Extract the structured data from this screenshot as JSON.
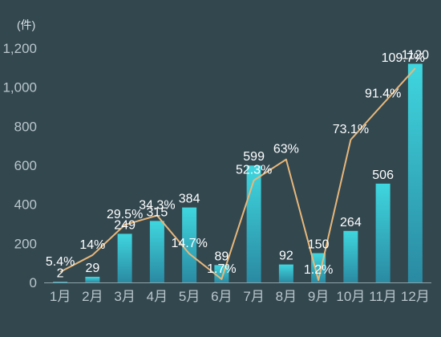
{
  "chart_data": {
    "type": "bar",
    "unit_label": "(件)",
    "categories": [
      "1月",
      "2月",
      "3月",
      "4月",
      "5月",
      "6月",
      "7月",
      "8月",
      "9月",
      "10月",
      "11月",
      "12月"
    ],
    "ylim": [
      0,
      1200
    ],
    "yticks": [
      "0",
      "200",
      "400",
      "600",
      "800",
      "1,000",
      "1,200"
    ],
    "grid": false,
    "series": [
      {
        "type": "bar",
        "values": [
          2,
          29,
          249,
          315,
          384,
          89,
          599,
          92,
          150,
          264,
          506,
          1120
        ],
        "labels": [
          "2",
          "29",
          "249",
          "315",
          "384",
          "89",
          "599",
          "92",
          "150",
          "264",
          "506",
          "1120"
        ]
      },
      {
        "type": "line",
        "values": [
          5.4,
          14,
          29.5,
          34.3,
          14.7,
          1.7,
          52.3,
          63,
          1.2,
          73.1,
          91.4,
          109.7
        ],
        "labels": [
          "5.4%",
          "14%",
          "29.5%",
          "34.3%",
          "14.7%",
          "1.7%",
          "52.3%",
          "63%",
          "1.2%",
          "73.1%",
          "91.4%",
          "109.7%"
        ]
      }
    ],
    "colors": {
      "background": "#33474f",
      "bar_top": "#3fd6df",
      "bar_bottom": "#2a8aa2",
      "line": "#e8b77a",
      "axis": "#8fa3aa"
    }
  }
}
